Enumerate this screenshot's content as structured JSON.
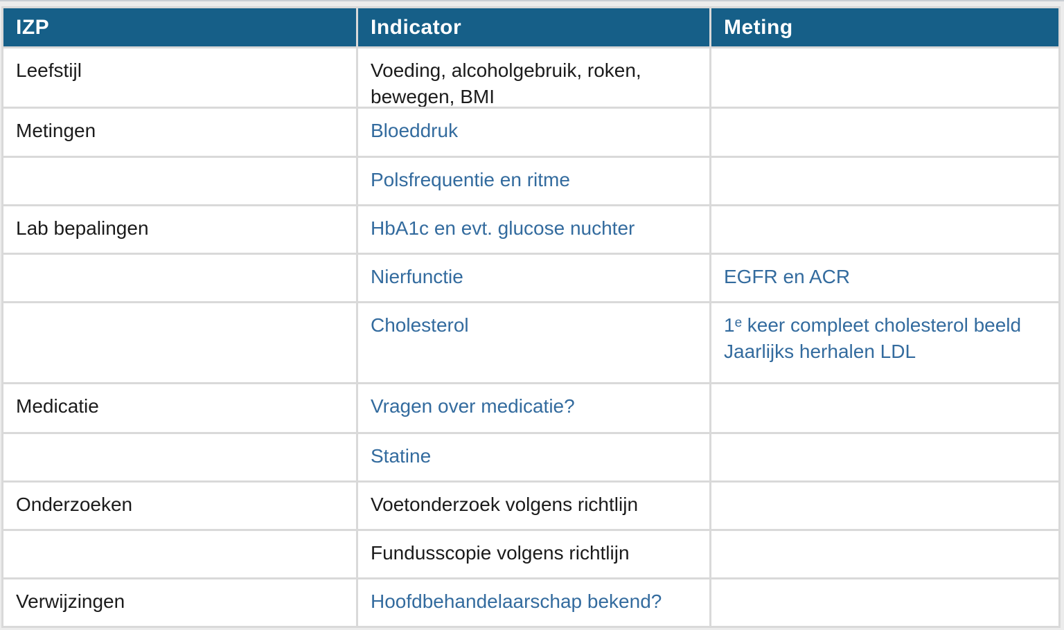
{
  "colors": {
    "header_bg": "#165f88",
    "header_text": "#ffffff",
    "link": "#336b9e",
    "body_text": "#1b1b1b",
    "grid_line": "#d9d9d9",
    "page_bg": "#ececec"
  },
  "header": {
    "izp": "IZP",
    "indicator": "Indicator",
    "meting": "Meting"
  },
  "rows": [
    {
      "izp": "Leefstijl",
      "indicator": "Voeding, alcoholgebruik, roken, bewegen, BMI",
      "meting": ""
    },
    {
      "izp": "Metingen",
      "indicator": "Bloeddruk",
      "meting": ""
    },
    {
      "izp": "",
      "indicator": "Polsfrequentie en ritme",
      "meting": ""
    },
    {
      "izp": "Lab bepalingen",
      "indicator": "HbA1c en evt. glucose nuchter",
      "meting": ""
    },
    {
      "izp": "",
      "indicator": "Nierfunctie",
      "meting": "EGFR en ACR"
    },
    {
      "izp": "",
      "indicator": "Cholesterol",
      "meting_line1": "1ᵉ keer compleet cholesterol beeld",
      "meting_line2": "Jaarlijks herhalen LDL"
    },
    {
      "izp": "Medicatie",
      "indicator": "Vragen over medicatie?",
      "meting": ""
    },
    {
      "izp": "",
      "indicator": "Statine",
      "meting": ""
    },
    {
      "izp": "Onderzoeken",
      "indicator": "Voetonderzoek volgens richtlijn",
      "meting": ""
    },
    {
      "izp": "",
      "indicator": "Fundusscopie volgens richtlijn",
      "meting": ""
    },
    {
      "izp": "Verwijzingen",
      "indicator": "Hoofdbehandelaarschap bekend?",
      "meting": ""
    }
  ]
}
